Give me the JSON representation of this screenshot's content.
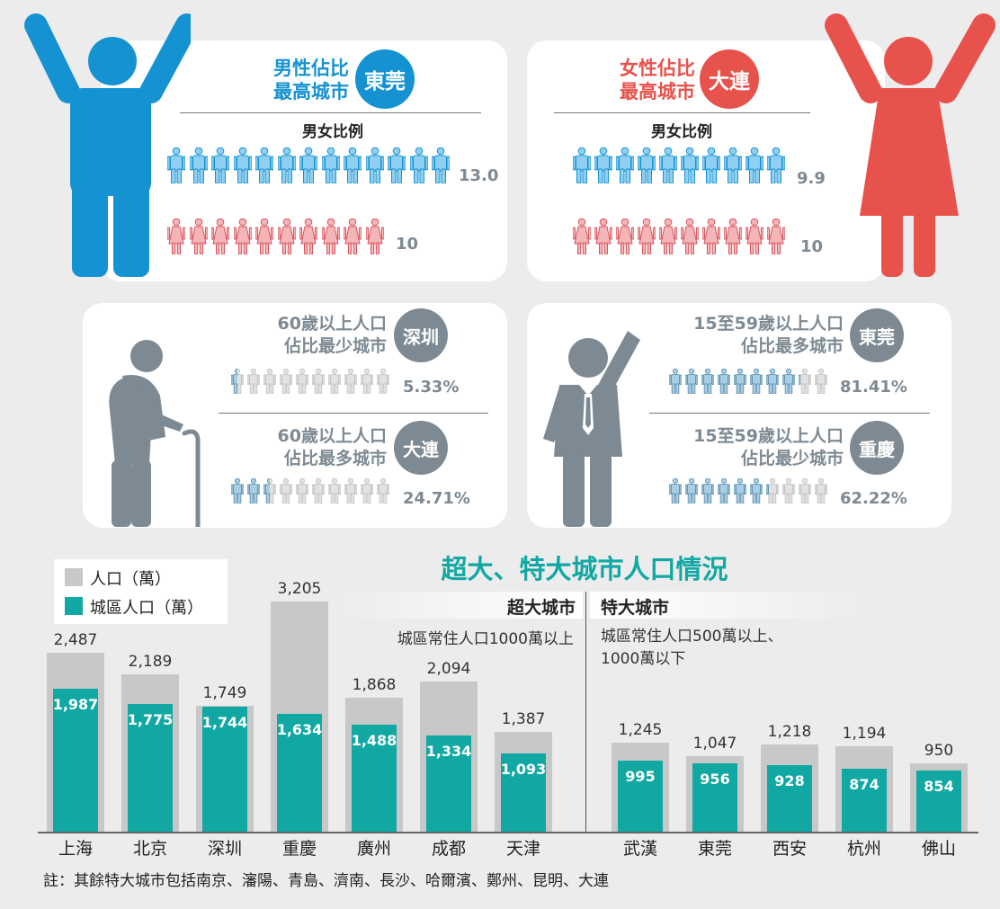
{
  "colors": {
    "male": "#1592d2",
    "female": "#e8524c",
    "teal": "#11a8a3",
    "gray": "#c8c8c8",
    "slate": "#7d8a93"
  },
  "male_panel": {
    "heading_line1": "男性佔比",
    "heading_line2": "最高城市",
    "city": "東莞",
    "subtitle": "男女比例",
    "male_value": "13.0",
    "female_value": "10"
  },
  "female_panel": {
    "heading_line1": "女性佔比",
    "heading_line2": "最高城市",
    "city": "大連",
    "subtitle": "男女比例",
    "male_value": "9.9",
    "female_value": "10"
  },
  "elderly_panel": {
    "top": {
      "line1": "60歲以上人口",
      "line2": "佔比最少城市",
      "city": "深圳",
      "value": "5.33%",
      "fill_fraction": 0.0533
    },
    "bottom": {
      "line1": "60歲以上人口",
      "line2": "佔比最多城市",
      "city": "大連",
      "value": "24.71%",
      "fill_fraction": 0.2471
    }
  },
  "working_panel": {
    "top": {
      "line1": "15至59歲以上人口",
      "line2": "佔比最多城市",
      "city": "東莞",
      "value": "81.41%",
      "fill_fraction": 0.8141
    },
    "bottom": {
      "line1": "15至59歲以上人口",
      "line2": "佔比最少城市",
      "city": "重慶",
      "value": "62.22%",
      "fill_fraction": 0.6222
    }
  },
  "chart_data": {
    "type": "bar",
    "title": "超大、特大城市人口情況",
    "legend": [
      "人口（萬）",
      "城區人口（萬）"
    ],
    "legend_position": "top-left",
    "groups": [
      {
        "name": "超大城市",
        "description": "城區常住人口1000萬以上"
      },
      {
        "name": "特大城市",
        "description_line1": "城區常住人口500萬以上、",
        "description_line2": "1000萬以下"
      }
    ],
    "categories": [
      "上海",
      "北京",
      "深圳",
      "重慶",
      "廣州",
      "成都",
      "天津",
      "武漢",
      "東莞",
      "西安",
      "杭州",
      "佛山"
    ],
    "series": [
      {
        "name": "人口（萬）",
        "values": [
          2487,
          2189,
          1749,
          3205,
          1868,
          2094,
          1387,
          1245,
          1047,
          1218,
          1194,
          950
        ],
        "labels": [
          "2,487",
          "2,189",
          "1,749",
          "3,205",
          "1,868",
          "2,094",
          "1,387",
          "1,245",
          "1,047",
          "1,218",
          "1,194",
          "950"
        ]
      },
      {
        "name": "城區人口（萬）",
        "values": [
          1987,
          1775,
          1744,
          1634,
          1488,
          1334,
          1093,
          995,
          956,
          928,
          874,
          854
        ],
        "labels": [
          "1,987",
          "1,775",
          "1,744",
          "1,634",
          "1,488",
          "1,334",
          "1,093",
          "995",
          "956",
          "928",
          "874",
          "854"
        ]
      }
    ],
    "ylim": [
      0,
      3205
    ]
  },
  "note": "註：其餘特大城市包括南京、瀋陽、青島、濟南、長沙、哈爾濱、鄭州、昆明、大連"
}
